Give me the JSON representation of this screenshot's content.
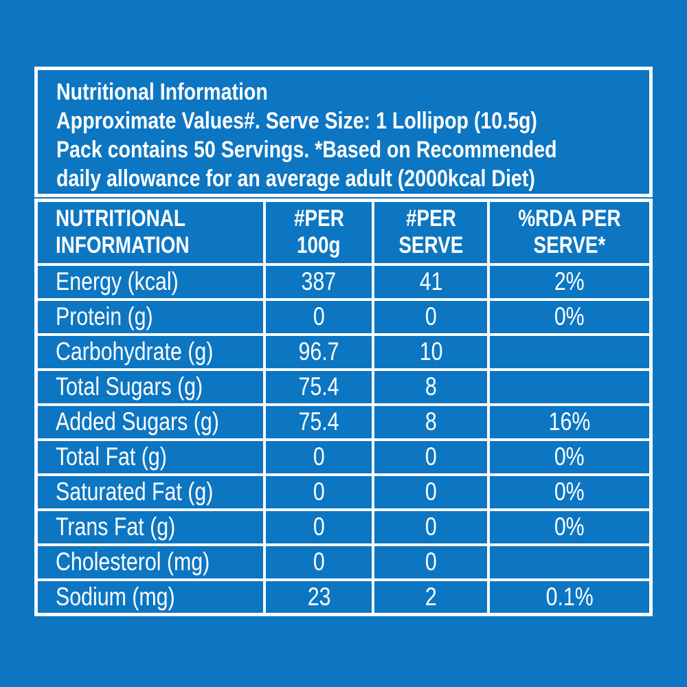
{
  "page": {
    "background_color": "#0d76c2",
    "border_and_text_color": "#ffffff"
  },
  "header": {
    "lines": [
      "Nutritional Information",
      "Approximate Values#. Serve Size: 1 Lollipop (10.5g)",
      "Pack contains 50 Servings. *Based on Recommended",
      "daily allowance for an average adult (2000kcal Diet)"
    ]
  },
  "table": {
    "columns": [
      {
        "line1": "NUTRITIONAL",
        "line2": "INFORMATION"
      },
      {
        "line1": "#PER",
        "line2": "100g"
      },
      {
        "line1": "#PER",
        "line2": "SERVE"
      },
      {
        "line1": "%RDA PER",
        "line2": "SERVE*"
      }
    ],
    "rows": [
      {
        "label": "Energy (kcal)",
        "per_100g": "387",
        "per_serve": "41",
        "rda_per_serve": "2%"
      },
      {
        "label": "Protein (g)",
        "per_100g": "0",
        "per_serve": "0",
        "rda_per_serve": "0%"
      },
      {
        "label": "Carbohydrate (g)",
        "per_100g": "96.7",
        "per_serve": "10",
        "rda_per_serve": ""
      },
      {
        "label": "Total Sugars (g)",
        "per_100g": "75.4",
        "per_serve": "8",
        "rda_per_serve": ""
      },
      {
        "label": "Added Sugars (g)",
        "per_100g": "75.4",
        "per_serve": "8",
        "rda_per_serve": "16%"
      },
      {
        "label": "Total Fat (g)",
        "per_100g": "0",
        "per_serve": "0",
        "rda_per_serve": "0%"
      },
      {
        "label": "Saturated Fat (g)",
        "per_100g": "0",
        "per_serve": "0",
        "rda_per_serve": "0%"
      },
      {
        "label": "Trans Fat (g)",
        "per_100g": "0",
        "per_serve": "0",
        "rda_per_serve": "0%"
      },
      {
        "label": "Cholesterol (mg)",
        "per_100g": "0",
        "per_serve": "0",
        "rda_per_serve": ""
      },
      {
        "label": "Sodium (mg)",
        "per_100g": "23",
        "per_serve": "2",
        "rda_per_serve": "0.1%"
      }
    ]
  }
}
